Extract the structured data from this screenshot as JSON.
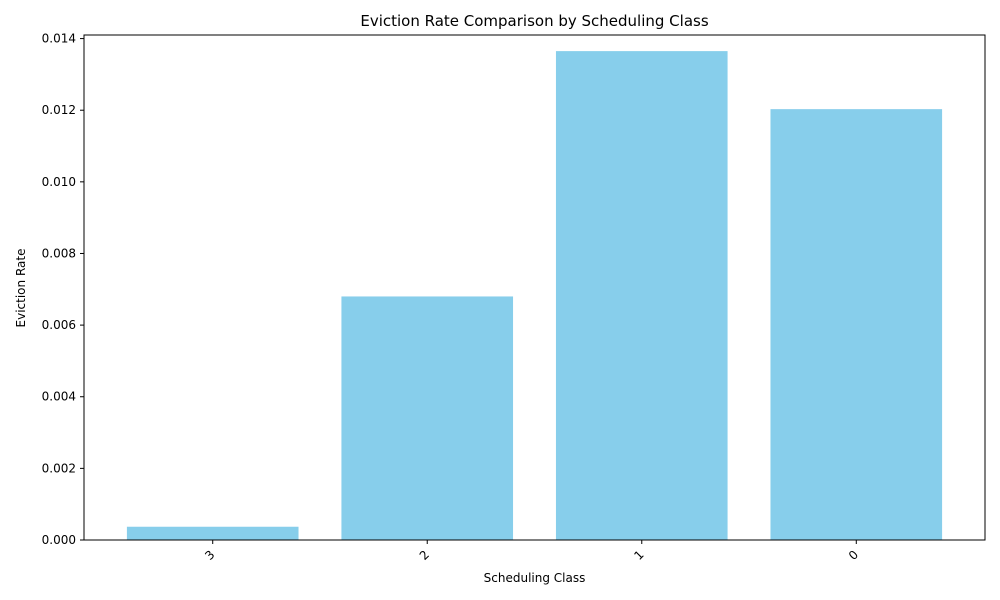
{
  "chart_data": {
    "type": "bar",
    "title": "Eviction Rate Comparison by Scheduling Class",
    "xlabel": "Scheduling Class",
    "ylabel": "Eviction Rate",
    "categories": [
      "3",
      "2",
      "1",
      "0"
    ],
    "values": [
      0.00037,
      0.0068,
      0.01365,
      0.01203
    ],
    "ylim": [
      0,
      0.0141
    ],
    "yticks": [
      "0.000",
      "0.002",
      "0.004",
      "0.006",
      "0.008",
      "0.010",
      "0.012",
      "0.014"
    ],
    "bar_color": "#87CEEB",
    "grid": false,
    "x_tick_rotation_deg": 45
  }
}
